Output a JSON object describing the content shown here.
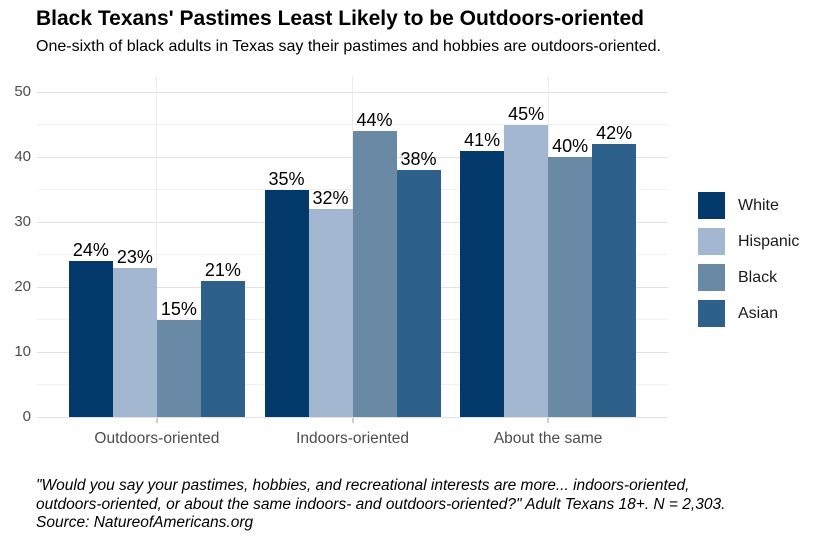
{
  "header": {
    "title": "Black Texans' Pastimes Least Likely to be Outdoors-oriented",
    "subtitle": "One-sixth of black adults in Texas say their pastimes and hobbies are outdoors-oriented."
  },
  "chart_data": {
    "type": "bar",
    "title": "Black Texans' Pastimes Least Likely to be Outdoors-oriented",
    "subtitle": "One-sixth of black adults in Texas say their pastimes and hobbies are outdoors-oriented.",
    "categories": [
      "Outdoors-oriented",
      "Indoors-oriented",
      "About the same"
    ],
    "series": [
      {
        "name": "White",
        "color": "#04396C",
        "values": [
          24,
          35,
          41
        ]
      },
      {
        "name": "Hispanic",
        "color": "#A3B8D0",
        "values": [
          23,
          32,
          45
        ]
      },
      {
        "name": "Black",
        "color": "#6989A4",
        "values": [
          15,
          44,
          40
        ]
      },
      {
        "name": "Asian",
        "color": "#2E608C",
        "values": [
          21,
          38,
          42
        ]
      }
    ],
    "value_suffix": "%",
    "xlabel": "",
    "ylabel": "",
    "ylim": [
      0,
      50
    ],
    "y_major_ticks": [
      0,
      10,
      20,
      30,
      40,
      50
    ],
    "y_minor_ticks": [
      5,
      15,
      25,
      35,
      45
    ],
    "grid": true,
    "legend_position": "right",
    "colors": {
      "grid_major": "#e2e2e2",
      "grid_minor": "#f1f1f1",
      "grid_vertical": "#ebebeb",
      "axis_text": "#4d4d4d",
      "value_label": "#000000"
    }
  },
  "footer": {
    "line1": "\"Would you say your pastimes, hobbies, and recreational interests are more... indoors-oriented,",
    "line2": "outdoors-oriented, or about the same indoors- and outdoors-oriented?\" Adult Texans 18+. N = 2,303.",
    "line3": "Source: NatureofAmericans.org"
  }
}
